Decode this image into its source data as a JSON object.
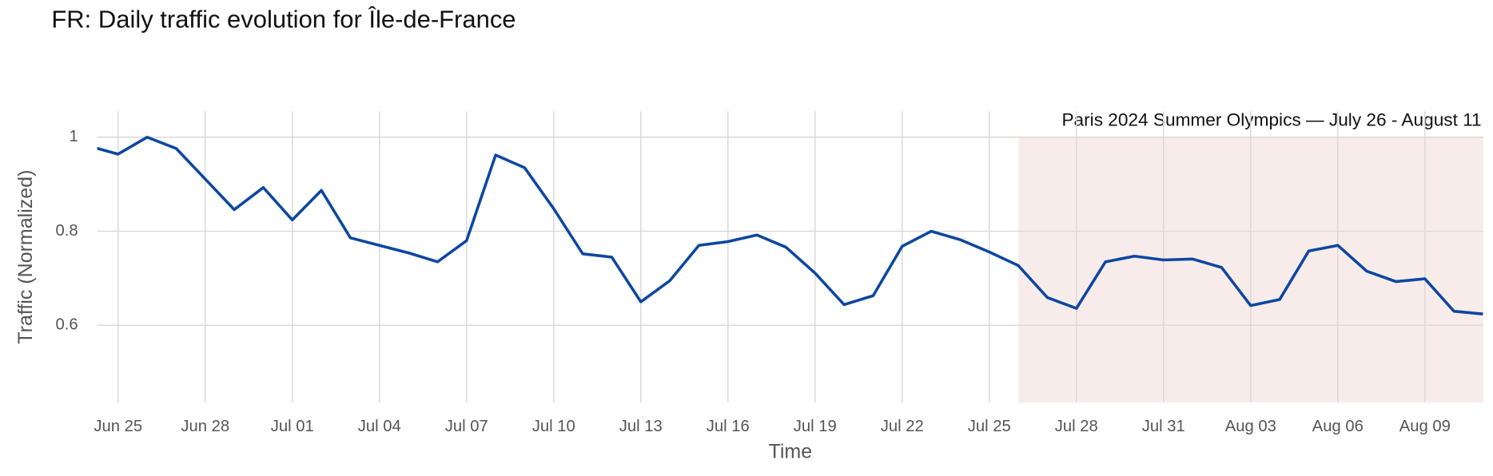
{
  "chart_data": {
    "type": "line",
    "title": "FR: Daily traffic evolution for Île-de-France",
    "x_label": "Time",
    "y_label": "Traffic (Normalized)",
    "categories": [
      "Jun 24",
      "Jun 25",
      "Jun 26",
      "Jun 27",
      "Jun 28",
      "Jun 29",
      "Jun 30",
      "Jul 01",
      "Jul 02",
      "Jul 03",
      "Jul 04",
      "Jul 05",
      "Jul 06",
      "Jul 07",
      "Jul 08",
      "Jul 09",
      "Jul 10",
      "Jul 11",
      "Jul 12",
      "Jul 13",
      "Jul 14",
      "Jul 15",
      "Jul 16",
      "Jul 17",
      "Jul 18",
      "Jul 19",
      "Jul 20",
      "Jul 21",
      "Jul 22",
      "Jul 23",
      "Jul 24",
      "Jul 25",
      "Jul 26",
      "Jul 27",
      "Jul 28",
      "Jul 29",
      "Jul 30",
      "Jul 31",
      "Aug 01",
      "Aug 02",
      "Aug 03",
      "Aug 04",
      "Aug 05",
      "Aug 06",
      "Aug 07",
      "Aug 08",
      "Aug 09",
      "Aug 10",
      "Aug 11"
    ],
    "values": [
      0.981,
      0.964,
      1.0,
      0.976,
      0.911,
      0.846,
      0.893,
      0.824,
      0.887,
      0.786,
      0.77,
      0.754,
      0.735,
      0.78,
      0.962,
      0.935,
      0.848,
      0.752,
      0.745,
      0.65,
      0.695,
      0.77,
      0.778,
      0.792,
      0.766,
      0.711,
      0.644,
      0.663,
      0.768,
      0.8,
      0.782,
      0.756,
      0.727,
      0.659,
      0.636,
      0.735,
      0.747,
      0.739,
      0.741,
      0.723,
      0.642,
      0.655,
      0.758,
      0.77,
      0.715,
      0.693,
      0.699,
      0.63,
      0.624
    ],
    "color": "#0d47a1",
    "xticks": [
      "Jun 25",
      "Jun 28",
      "Jul 01",
      "Jul 04",
      "Jul 07",
      "Jul 10",
      "Jul 13",
      "Jul 16",
      "Jul 19",
      "Jul 22",
      "Jul 25",
      "Jul 28",
      "Jul 31",
      "Aug 03",
      "Aug 06",
      "Aug 09"
    ],
    "ylim": [
      0.436,
      1.055
    ],
    "yticks": [
      0.6,
      0.8,
      1
    ],
    "grid": true,
    "highlight": {
      "from": "Jul 26",
      "top": 1,
      "color": "#f8ecea",
      "label": "Paris 2024 Summer Olympics — July 26 - August 11"
    }
  }
}
